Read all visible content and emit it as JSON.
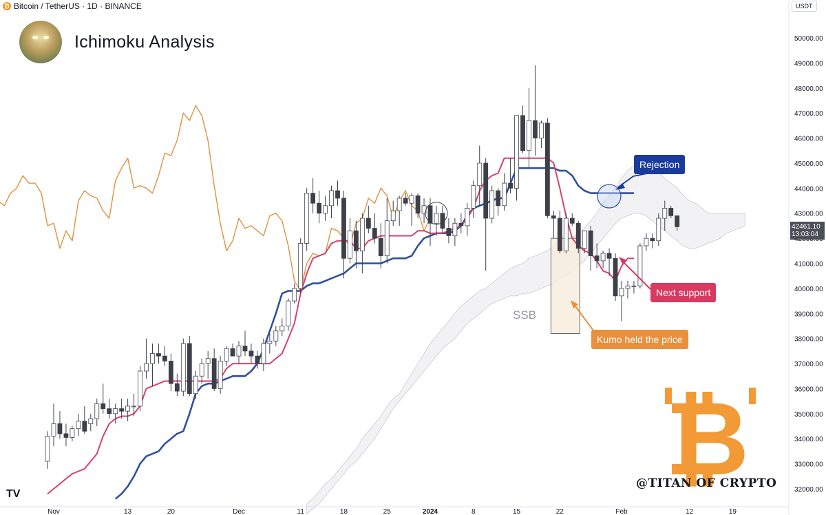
{
  "header": {
    "symbol_line": "Bitcoin / TetherUS · 1D · BINANCE",
    "brand_title": "Ichimoku Analysis",
    "currency": "USDT"
  },
  "colors": {
    "tenkan": "#d6426b",
    "kijun": "#2f4f9e",
    "chikou": "#e0913e",
    "kumo": "#ededf0",
    "candle_up": "#ffffff",
    "candle_down": "#3d4048",
    "rejection": "#1b3b9c",
    "next_support": "#d83a62",
    "kumo_held": "#ea8f3c"
  },
  "annotations": {
    "rejection": "Rejection",
    "next_support": "Next support",
    "kumo_held": "Kumo held the price",
    "ssb": "SSB"
  },
  "price_tag": {
    "price": "42461.10",
    "countdown": "13:03:04"
  },
  "watermark": {
    "handle": "@TITAN OF CRYPTO",
    "logo_glyph": "₿",
    "tv_logo": "TV"
  },
  "chart_data": {
    "type": "candlestick",
    "title": "Ichimoku Analysis",
    "ylim": [
      31600,
      50600
    ],
    "y_ticks": [
      32000,
      33000,
      34000,
      35000,
      36000,
      37000,
      38000,
      39000,
      40000,
      41000,
      42000,
      43000,
      44000,
      45000,
      46000,
      47000,
      48000,
      49000,
      50000
    ],
    "x_ticks": [
      {
        "label": "Nov",
        "day": 1
      },
      {
        "label": "13",
        "day": 13
      },
      {
        "label": "20",
        "day": 20
      },
      {
        "label": "Dec",
        "day": 31
      },
      {
        "label": "11",
        "day": 41
      },
      {
        "label": "18",
        "day": 48
      },
      {
        "label": "25",
        "day": 55
      },
      {
        "label": "2024",
        "day": 62
      },
      {
        "label": "8",
        "day": 69
      },
      {
        "label": "15",
        "day": 76
      },
      {
        "label": "22",
        "day": 83
      },
      {
        "label": "Feb",
        "day": 93
      },
      {
        "label": "12",
        "day": 104
      },
      {
        "label": "19",
        "day": 111
      }
    ],
    "candles": [
      {
        "o": 33100,
        "h": 34300,
        "l": 32800,
        "c": 34100
      },
      {
        "o": 34100,
        "h": 35400,
        "l": 33700,
        "c": 34600
      },
      {
        "o": 34600,
        "h": 35100,
        "l": 34000,
        "c": 34200
      },
      {
        "o": 34200,
        "h": 34600,
        "l": 33700,
        "c": 34050
      },
      {
        "o": 34050,
        "h": 34500,
        "l": 33900,
        "c": 34400
      },
      {
        "o": 34400,
        "h": 35000,
        "l": 34100,
        "c": 34700
      },
      {
        "o": 34700,
        "h": 35300,
        "l": 34200,
        "c": 34300
      },
      {
        "o": 34600,
        "h": 35000,
        "l": 34300,
        "c": 34800
      },
      {
        "o": 34800,
        "h": 35600,
        "l": 34500,
        "c": 35400
      },
      {
        "o": 35400,
        "h": 36200,
        "l": 35000,
        "c": 35200
      },
      {
        "o": 35200,
        "h": 35600,
        "l": 34800,
        "c": 35000
      },
      {
        "o": 35000,
        "h": 35400,
        "l": 34600,
        "c": 35200
      },
      {
        "o": 35200,
        "h": 35600,
        "l": 34800,
        "c": 35100
      },
      {
        "o": 35100,
        "h": 35600,
        "l": 34700,
        "c": 35300
      },
      {
        "o": 35300,
        "h": 35800,
        "l": 34900,
        "c": 35300
      },
      {
        "o": 35300,
        "h": 36900,
        "l": 35100,
        "c": 36700
      },
      {
        "o": 36700,
        "h": 38000,
        "l": 36400,
        "c": 37000
      },
      {
        "o": 37000,
        "h": 37800,
        "l": 36100,
        "c": 37400
      },
      {
        "o": 37400,
        "h": 37800,
        "l": 37000,
        "c": 37300
      },
      {
        "o": 37300,
        "h": 37700,
        "l": 36900,
        "c": 37100
      },
      {
        "o": 37100,
        "h": 37400,
        "l": 35900,
        "c": 36200
      },
      {
        "o": 36200,
        "h": 36600,
        "l": 35700,
        "c": 35900
      },
      {
        "o": 35900,
        "h": 38000,
        "l": 35700,
        "c": 37800
      },
      {
        "o": 37800,
        "h": 38100,
        "l": 35700,
        "c": 35800
      },
      {
        "o": 35800,
        "h": 36700,
        "l": 35600,
        "c": 36500
      },
      {
        "o": 36500,
        "h": 37200,
        "l": 36200,
        "c": 37000
      },
      {
        "o": 37000,
        "h": 37500,
        "l": 36400,
        "c": 37200
      },
      {
        "o": 37200,
        "h": 37600,
        "l": 35900,
        "c": 36000
      },
      {
        "o": 36000,
        "h": 37300,
        "l": 35800,
        "c": 37100
      },
      {
        "o": 37100,
        "h": 37700,
        "l": 36900,
        "c": 37600
      },
      {
        "o": 37600,
        "h": 37800,
        "l": 37300,
        "c": 37300
      },
      {
        "o": 37300,
        "h": 37900,
        "l": 37000,
        "c": 37700
      },
      {
        "o": 37700,
        "h": 38300,
        "l": 37300,
        "c": 37500
      },
      {
        "o": 37500,
        "h": 37800,
        "l": 37000,
        "c": 37300
      },
      {
        "o": 37300,
        "h": 37500,
        "l": 36800,
        "c": 37000
      },
      {
        "o": 37000,
        "h": 38000,
        "l": 36700,
        "c": 37800
      },
      {
        "o": 37800,
        "h": 38200,
        "l": 37400,
        "c": 37900
      },
      {
        "o": 37900,
        "h": 38500,
        "l": 37700,
        "c": 38300
      },
      {
        "o": 38300,
        "h": 38800,
        "l": 38100,
        "c": 38500
      },
      {
        "o": 38500,
        "h": 39600,
        "l": 38300,
        "c": 39500
      },
      {
        "o": 39500,
        "h": 40200,
        "l": 39400,
        "c": 40000
      },
      {
        "o": 40000,
        "h": 42000,
        "l": 39800,
        "c": 41800
      },
      {
        "o": 41800,
        "h": 44000,
        "l": 41500,
        "c": 43800
      },
      {
        "o": 43800,
        "h": 44400,
        "l": 43000,
        "c": 43400
      },
      {
        "o": 43400,
        "h": 43900,
        "l": 42600,
        "c": 43000
      },
      {
        "o": 43000,
        "h": 43700,
        "l": 42700,
        "c": 43300
      },
      {
        "o": 43300,
        "h": 44100,
        "l": 42800,
        "c": 43900
      },
      {
        "o": 43900,
        "h": 44300,
        "l": 43300,
        "c": 43600
      },
      {
        "o": 43600,
        "h": 43900,
        "l": 40400,
        "c": 41200
      },
      {
        "o": 41200,
        "h": 42800,
        "l": 41000,
        "c": 42300
      },
      {
        "o": 42300,
        "h": 42700,
        "l": 40800,
        "c": 41500
      },
      {
        "o": 41500,
        "h": 43000,
        "l": 40600,
        "c": 42800
      },
      {
        "o": 42800,
        "h": 43300,
        "l": 42200,
        "c": 42400
      },
      {
        "o": 42400,
        "h": 43000,
        "l": 41800,
        "c": 42000
      },
      {
        "o": 42000,
        "h": 42600,
        "l": 40800,
        "c": 41300
      },
      {
        "o": 41300,
        "h": 43600,
        "l": 41000,
        "c": 42700
      },
      {
        "o": 42700,
        "h": 43500,
        "l": 42500,
        "c": 43100
      },
      {
        "o": 43100,
        "h": 43700,
        "l": 42500,
        "c": 43600
      },
      {
        "o": 43600,
        "h": 43800,
        "l": 43300,
        "c": 43400
      },
      {
        "o": 43400,
        "h": 43800,
        "l": 42500,
        "c": 43700
      },
      {
        "o": 43700,
        "h": 43800,
        "l": 42800,
        "c": 43000
      },
      {
        "o": 43000,
        "h": 43600,
        "l": 42600,
        "c": 43300
      },
      {
        "o": 43300,
        "h": 43600,
        "l": 41700,
        "c": 42600
      },
      {
        "o": 42600,
        "h": 43300,
        "l": 42100,
        "c": 43000
      },
      {
        "o": 43000,
        "h": 43300,
        "l": 42200,
        "c": 42400
      },
      {
        "o": 42400,
        "h": 42800,
        "l": 41800,
        "c": 42100
      },
      {
        "o": 42100,
        "h": 42800,
        "l": 41700,
        "c": 42600
      },
      {
        "o": 42600,
        "h": 43000,
        "l": 42200,
        "c": 42500
      },
      {
        "o": 42500,
        "h": 43400,
        "l": 42100,
        "c": 43200
      },
      {
        "o": 43200,
        "h": 44300,
        "l": 42800,
        "c": 44100
      },
      {
        "o": 44100,
        "h": 45700,
        "l": 43300,
        "c": 45000
      },
      {
        "o": 45000,
        "h": 45200,
        "l": 40700,
        "c": 42800
      },
      {
        "o": 42800,
        "h": 44100,
        "l": 42600,
        "c": 43900
      },
      {
        "o": 43900,
        "h": 44000,
        "l": 42900,
        "c": 43300
      },
      {
        "o": 43300,
        "h": 44600,
        "l": 43100,
        "c": 44200
      },
      {
        "o": 44200,
        "h": 45200,
        "l": 43800,
        "c": 44000
      },
      {
        "o": 44000,
        "h": 46900,
        "l": 43500,
        "c": 46900
      },
      {
        "o": 46900,
        "h": 47300,
        "l": 45400,
        "c": 45500
      },
      {
        "o": 45500,
        "h": 48000,
        "l": 44800,
        "c": 46700
      },
      {
        "o": 46700,
        "h": 48900,
        "l": 45300,
        "c": 46000
      },
      {
        "o": 46000,
        "h": 46700,
        "l": 45600,
        "c": 46600
      },
      {
        "o": 46600,
        "h": 46800,
        "l": 42800,
        "c": 42900
      },
      {
        "o": 42900,
        "h": 43100,
        "l": 42000,
        "c": 42800
      },
      {
        "o": 42800,
        "h": 43100,
        "l": 41400,
        "c": 41500
      },
      {
        "o": 41500,
        "h": 43000,
        "l": 41400,
        "c": 42800
      },
      {
        "o": 42800,
        "h": 43000,
        "l": 42500,
        "c": 42600
      },
      {
        "o": 42600,
        "h": 42700,
        "l": 41400,
        "c": 41600
      },
      {
        "o": 41600,
        "h": 42200,
        "l": 41400,
        "c": 42300
      },
      {
        "o": 42300,
        "h": 42500,
        "l": 40700,
        "c": 41300
      },
      {
        "o": 41300,
        "h": 41800,
        "l": 40800,
        "c": 41100
      },
      {
        "o": 41100,
        "h": 41500,
        "l": 40800,
        "c": 41400
      },
      {
        "o": 41400,
        "h": 41600,
        "l": 40500,
        "c": 41200
      },
      {
        "o": 41200,
        "h": 41400,
        "l": 39500,
        "c": 39700
      },
      {
        "o": 39700,
        "h": 40300,
        "l": 38700,
        "c": 40000
      },
      {
        "o": 40000,
        "h": 40300,
        "l": 39600,
        "c": 40100
      },
      {
        "o": 40100,
        "h": 40300,
        "l": 39800,
        "c": 40100
      },
      {
        "o": 40100,
        "h": 41800,
        "l": 40000,
        "c": 41700
      },
      {
        "o": 41700,
        "h": 42200,
        "l": 41500,
        "c": 42000
      },
      {
        "o": 42000,
        "h": 42200,
        "l": 41600,
        "c": 41900
      },
      {
        "o": 41900,
        "h": 43000,
        "l": 41700,
        "c": 42800
      },
      {
        "o": 42800,
        "h": 43500,
        "l": 42300,
        "c": 43200
      },
      {
        "o": 43200,
        "h": 43300,
        "l": 42800,
        "c": 42900
      },
      {
        "o": 42900,
        "h": 42900,
        "l": 42300,
        "c": 42461
      }
    ],
    "series": [
      {
        "key": "tenkan",
        "values": [
          31800,
          32000,
          32200,
          32400,
          32600,
          32700,
          32800,
          33100,
          33400,
          34100,
          34600,
          34800,
          34900,
          34900,
          35000,
          35300,
          36000,
          36100,
          36200,
          36300,
          36300,
          36300,
          36300,
          36300,
          36300,
          36300,
          36300,
          36300,
          36400,
          36800,
          37000,
          37000,
          37000,
          37000,
          37000,
          37000,
          37000,
          37200,
          37400,
          38000,
          38600,
          39800,
          40600,
          41200,
          41300,
          41400,
          41800,
          41900,
          41900,
          41900,
          41600,
          41600,
          41900,
          42000,
          42100,
          42100,
          42100,
          42100,
          42100,
          42100,
          42300,
          42300,
          42200,
          42200,
          42200,
          42300,
          42400,
          42500,
          42800,
          43200,
          43900,
          44300,
          44500,
          44600,
          45200,
          45200,
          45200,
          45200,
          45200,
          45200,
          45200,
          45200,
          45000,
          44000,
          42900,
          42000,
          41700,
          41500,
          41400,
          41100,
          40700,
          40600,
          40300,
          40900,
          41200,
          41200
        ]
      },
      {
        "key": "kijun",
        "values": [
          null,
          null,
          null,
          null,
          null,
          null,
          null,
          null,
          null,
          null,
          null,
          31600,
          31800,
          32100,
          32500,
          33000,
          33300,
          33400,
          33500,
          33800,
          34000,
          34200,
          34300,
          35000,
          35800,
          36100,
          36200,
          36200,
          36300,
          36400,
          36500,
          36500,
          36500,
          36700,
          37000,
          37600,
          38300,
          39000,
          39800,
          39900,
          39900,
          39900,
          40100,
          40200,
          40200,
          40300,
          40400,
          40500,
          40600,
          40800,
          41000,
          41000,
          41000,
          41000,
          41000,
          41100,
          41200,
          41200,
          41200,
          41300,
          41700,
          42000,
          42100,
          42200,
          42200,
          42200,
          42300,
          42500,
          42900,
          43200,
          43300,
          43400,
          43500,
          43600,
          43600,
          44200,
          44800,
          44800,
          44800,
          44800,
          44800,
          44800,
          44800,
          44700,
          44700,
          44500,
          44100,
          43900,
          43800,
          43800,
          43800,
          43800,
          43800,
          43800,
          43800,
          43800
        ]
      },
      {
        "key": "chikou",
        "values": [
          37000,
          37400,
          37200,
          37100,
          37300,
          37500,
          37600,
          38000,
          38500,
          39000,
          40300,
          42000,
          43500,
          43300,
          43800,
          44000,
          44500,
          44200,
          44200,
          43800,
          42500,
          42600,
          41600,
          42300,
          41900,
          43500,
          43900,
          43700,
          43600,
          43100,
          42800,
          44300,
          44800,
          45200,
          44000,
          44100,
          44000,
          43800,
          44500,
          45400,
          45300,
          45900,
          47000,
          46700,
          47300,
          46900,
          45900,
          44100,
          42600,
          41500,
          41900,
          42800,
          42400,
          42500,
          42300,
          42100,
          42900,
          43000,
          42700,
          41700,
          40300,
          39900,
          41000,
          41400,
          41300,
          41400,
          42400,
          42300,
          42000,
          41700,
          42600,
          42800,
          43600,
          43400,
          44000,
          43700,
          42800,
          43500,
          43900,
          43300,
          43100,
          42300,
          42800
        ]
      },
      {
        "key": "kumo_top",
        "values": [
          31400,
          31600,
          31900,
          32200,
          32400,
          32700,
          33000,
          33300,
          33600,
          34000,
          34300,
          34600,
          34900,
          35300,
          35600,
          35800,
          36200,
          36600,
          37000,
          37400,
          37800,
          38100,
          38400,
          38700,
          39000,
          39300,
          39500,
          39700,
          39900,
          40000,
          40200,
          40400,
          40600,
          40800,
          40900,
          41000,
          41200,
          41300,
          41400,
          41500,
          41700,
          41800,
          41900,
          42000,
          42200,
          42400,
          42700,
          43000,
          43400,
          43700,
          44000,
          44400,
          44700,
          44900,
          45000,
          45000,
          44800,
          44600,
          44400,
          44200,
          44000,
          43700,
          43500,
          43400,
          43200,
          43000,
          43000,
          43000,
          43000,
          43000,
          43000,
          43000
        ]
      },
      {
        "key": "kumo_bottom",
        "values": [
          31000,
          31200,
          31400,
          31700,
          32000,
          32300,
          32600,
          32900,
          33100,
          33400,
          33700,
          34000,
          34400,
          34800,
          35200,
          35500,
          35800,
          36100,
          36400,
          36700,
          37000,
          37300,
          37600,
          37800,
          38000,
          38300,
          38600,
          38800,
          39000,
          39200,
          39400,
          39500,
          39600,
          39700,
          39700,
          39800,
          39800,
          39900,
          40000,
          40100,
          40200,
          40400,
          40500,
          40700,
          40900,
          41100,
          41400,
          41700,
          42000,
          42300,
          42600,
          42800,
          42900,
          43000,
          43000,
          42900,
          42700,
          42500,
          42300,
          42100,
          41900,
          41700,
          41600,
          41600,
          41700,
          41800,
          41900,
          42000,
          42200,
          42300,
          42400,
          42500
        ]
      }
    ],
    "kumo_start_day": 42,
    "chikou_start_day": 0,
    "tenkan_start_day": 0,
    "kijun_start_day": 0
  }
}
